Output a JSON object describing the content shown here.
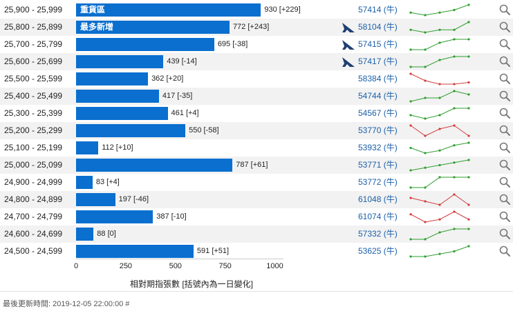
{
  "chart_data": {
    "type": "bar",
    "orientation": "horizontal",
    "xlabel": "相對期指張數 [括號內為一日變化]",
    "xlim": [
      0,
      1000
    ],
    "xticks": [
      0,
      250,
      500,
      750,
      1000
    ],
    "rows": [
      {
        "range": "25,900 - 25,999",
        "value": 930,
        "change": "[+229]",
        "label": "重貨區",
        "ship": false,
        "code": "57414 (牛)",
        "trend": [
          3,
          2,
          3,
          4,
          6
        ],
        "trend_color": "#2e9e2e"
      },
      {
        "range": "25,800 - 25,899",
        "value": 772,
        "change": "[+243]",
        "label": "最多新增",
        "ship": true,
        "code": "58104 (牛)",
        "trend": [
          3,
          2,
          3,
          3,
          6
        ],
        "trend_color": "#2e9e2e"
      },
      {
        "range": "25,700 - 25,799",
        "value": 695,
        "change": "[-38]",
        "label": "",
        "ship": true,
        "code": "57415 (牛)",
        "trend": [
          1,
          1,
          3,
          4,
          4
        ],
        "trend_color": "#2e9e2e"
      },
      {
        "range": "25,600 - 25,699",
        "value": 439,
        "change": "[-14]",
        "label": "",
        "ship": true,
        "code": "57417 (牛)",
        "trend": [
          1,
          1,
          3,
          4,
          4
        ],
        "trend_color": "#2e9e2e"
      },
      {
        "range": "25,500 - 25,599",
        "value": 362,
        "change": "[+20]",
        "label": "",
        "ship": false,
        "code": "58384 (牛)",
        "trend": [
          6,
          4,
          3,
          3,
          3.5
        ],
        "trend_color": "#d23c3c"
      },
      {
        "range": "25,400 - 25,499",
        "value": 417,
        "change": "[-35]",
        "label": "",
        "ship": false,
        "code": "54744 (牛)",
        "trend": [
          2,
          3,
          3,
          5,
          4
        ],
        "trend_color": "#2e9e2e"
      },
      {
        "range": "25,300 - 25,399",
        "value": 461,
        "change": "[+4]",
        "label": "",
        "ship": false,
        "code": "54567 (牛)",
        "trend": [
          2,
          1,
          2,
          4,
          4
        ],
        "trend_color": "#2e9e2e"
      },
      {
        "range": "25,200 - 25,299",
        "value": 550,
        "change": "[-58]",
        "label": "",
        "ship": false,
        "code": "53770 (牛)",
        "trend": [
          5,
          2,
          4,
          5,
          2
        ],
        "trend_color": "#d23c3c"
      },
      {
        "range": "25,100 - 25,199",
        "value": 112,
        "change": "[+10]",
        "label": "",
        "ship": false,
        "code": "53932 (牛)",
        "trend": [
          3,
          1,
          2,
          4,
          5
        ],
        "trend_color": "#2e9e2e"
      },
      {
        "range": "25,000 - 25,099",
        "value": 787,
        "change": "[+61]",
        "label": "",
        "ship": false,
        "code": "53771 (牛)",
        "trend": [
          1,
          2,
          3,
          4,
          5
        ],
        "trend_color": "#2e9e2e"
      },
      {
        "range": "24,900 - 24,999",
        "value": 83,
        "change": "[+4]",
        "label": "",
        "ship": false,
        "code": "53772 (牛)",
        "trend": [
          1,
          1,
          4,
          4,
          4
        ],
        "trend_color": "#2e9e2e"
      },
      {
        "range": "24,800 - 24,899",
        "value": 197,
        "change": "[-46]",
        "label": "",
        "ship": false,
        "code": "61048 (牛)",
        "trend": [
          4,
          3,
          2,
          5,
          2
        ],
        "trend_color": "#d23c3c"
      },
      {
        "range": "24,700 - 24,799",
        "value": 387,
        "change": "[-10]",
        "label": "",
        "ship": false,
        "code": "61074 (牛)",
        "trend": [
          4,
          1,
          2,
          5,
          2
        ],
        "trend_color": "#d23c3c"
      },
      {
        "range": "24,600 - 24,699",
        "value": 88,
        "change": "[0]",
        "label": "",
        "ship": false,
        "code": "57332 (牛)",
        "trend": [
          1,
          1,
          3,
          4,
          4
        ],
        "trend_color": "#2e9e2e"
      },
      {
        "range": "24,500 - 24,599",
        "value": 591,
        "change": "[+51]",
        "label": "",
        "ship": false,
        "code": "53625 (牛)",
        "trend": [
          1,
          1,
          2,
          3,
          5
        ],
        "trend_color": "#2e9e2e"
      }
    ]
  },
  "footer": {
    "text": "最後更新時間: 2019-12-05 22:00:00 #"
  }
}
